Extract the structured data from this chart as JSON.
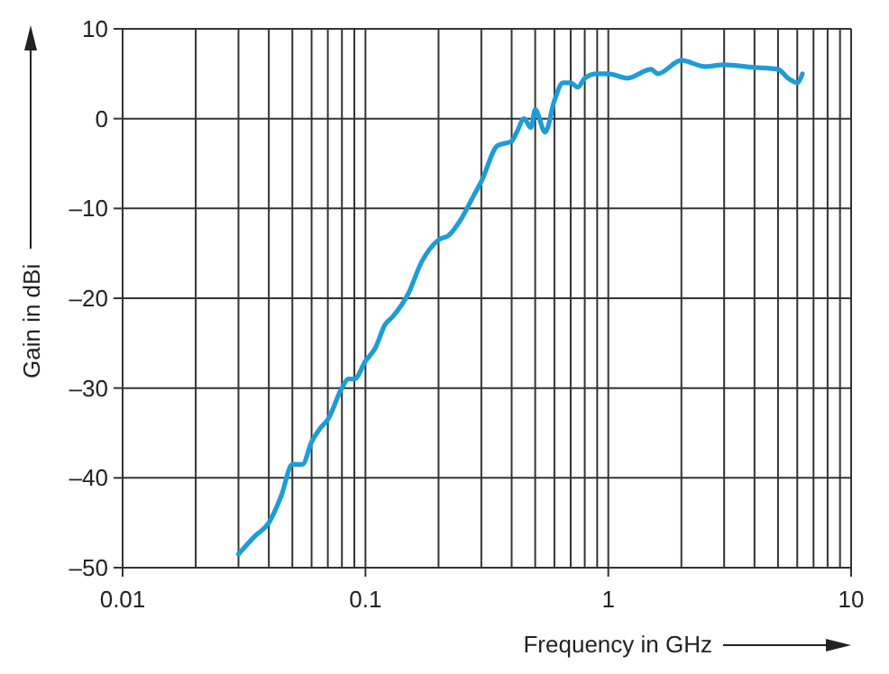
{
  "chart_data": {
    "type": "line",
    "xlabel": "Frequency in GHz",
    "ylabel": "Gain in dBi",
    "log": "x",
    "grid": true,
    "xlim": [
      0.01,
      10
    ],
    "xticks": [
      0.01,
      0.1,
      1,
      10
    ],
    "ylim": [
      -50,
      10
    ],
    "yticks": [
      {
        "value": -50,
        "label": "–50"
      },
      {
        "value": -40,
        "label": "–40"
      },
      {
        "value": -30,
        "label": "–30"
      },
      {
        "value": -20,
        "label": "–20"
      },
      {
        "value": -10,
        "label": "–10"
      },
      0,
      10
    ],
    "series": [
      {
        "color": "#1e9cd7",
        "x": [
          0.03,
          0.035,
          0.04,
          0.045,
          0.05,
          0.055,
          0.06,
          0.065,
          0.07,
          0.08,
          0.085,
          0.09,
          0.1,
          0.11,
          0.12,
          0.13,
          0.15,
          0.17,
          0.2,
          0.22,
          0.25,
          0.28,
          0.3,
          0.35,
          0.4,
          0.42,
          0.45,
          0.48,
          0.5,
          0.55,
          0.6,
          0.65,
          0.7,
          0.75,
          0.8,
          0.9,
          1,
          1.2,
          1.5,
          1.6,
          2,
          2.5,
          3,
          4,
          5,
          5.5,
          6,
          6.3
        ],
        "values": [
          -48.5,
          -46.5,
          -45,
          -42,
          -38.5,
          -38.5,
          -36,
          -34.5,
          -33.5,
          -30,
          -29,
          -29,
          -27,
          -25.5,
          -23,
          -22,
          -19.5,
          -16,
          -13.5,
          -13,
          -11,
          -8.5,
          -7,
          -3,
          -2.5,
          -1.5,
          0,
          -1,
          1,
          -1.5,
          2,
          4,
          4,
          3.5,
          4.5,
          5,
          5,
          4.5,
          5.5,
          5,
          6.5,
          5.8,
          6,
          5.7,
          5.5,
          4.5,
          4,
          5
        ]
      }
    ]
  }
}
